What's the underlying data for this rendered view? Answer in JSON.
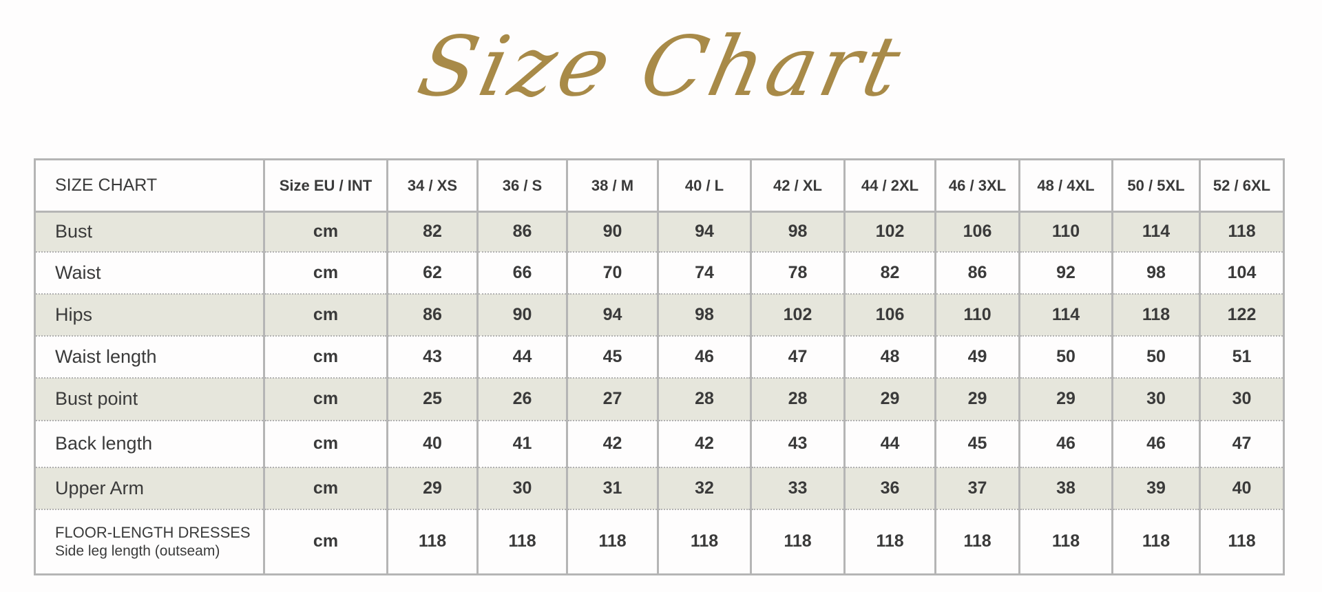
{
  "title": "Size Chart",
  "colors": {
    "title": "#a88a48",
    "shade": "#e6e6dc",
    "border": "#b5b5b5",
    "text": "#3a3a3a"
  },
  "table": {
    "headers": [
      "SIZE CHART",
      "Size EU / INT",
      "34 / XS",
      "36 / S",
      "38 / M",
      "40 / L",
      "42 / XL",
      "44 / 2XL",
      "46 / 3XL",
      "48 / 4XL",
      "50 / 5XL",
      "52 / 6XL"
    ],
    "rows": [
      {
        "label": "Bust",
        "unit": "cm",
        "values": [
          "82",
          "86",
          "90",
          "94",
          "98",
          "102",
          "106",
          "110",
          "114",
          "118"
        ]
      },
      {
        "label": "Waist",
        "unit": "cm",
        "values": [
          "62",
          "66",
          "70",
          "74",
          "78",
          "82",
          "86",
          "92",
          "98",
          "104"
        ]
      },
      {
        "label": "Hips",
        "unit": "cm",
        "values": [
          "86",
          "90",
          "94",
          "98",
          "102",
          "106",
          "110",
          "114",
          "118",
          "122"
        ]
      },
      {
        "label": "Waist length",
        "unit": "cm",
        "values": [
          "43",
          "44",
          "45",
          "46",
          "47",
          "48",
          "49",
          "50",
          "50",
          "51"
        ]
      },
      {
        "label": "Bust point",
        "unit": "cm",
        "values": [
          "25",
          "26",
          "27",
          "28",
          "28",
          "29",
          "29",
          "29",
          "30",
          "30"
        ]
      },
      {
        "label": "Back length",
        "unit": "cm",
        "values": [
          "40",
          "41",
          "42",
          "42",
          "43",
          "44",
          "45",
          "46",
          "46",
          "47"
        ]
      },
      {
        "label": "Upper Arm",
        "unit": "cm",
        "values": [
          "29",
          "30",
          "31",
          "32",
          "33",
          "36",
          "37",
          "38",
          "39",
          "40"
        ]
      },
      {
        "label": "FLOOR-LENGTH DRESSES",
        "sublabel": "Side leg length (outseam)",
        "unit": "cm",
        "values": [
          "118",
          "118",
          "118",
          "118",
          "118",
          "118",
          "118",
          "118",
          "118",
          "118"
        ]
      }
    ]
  }
}
